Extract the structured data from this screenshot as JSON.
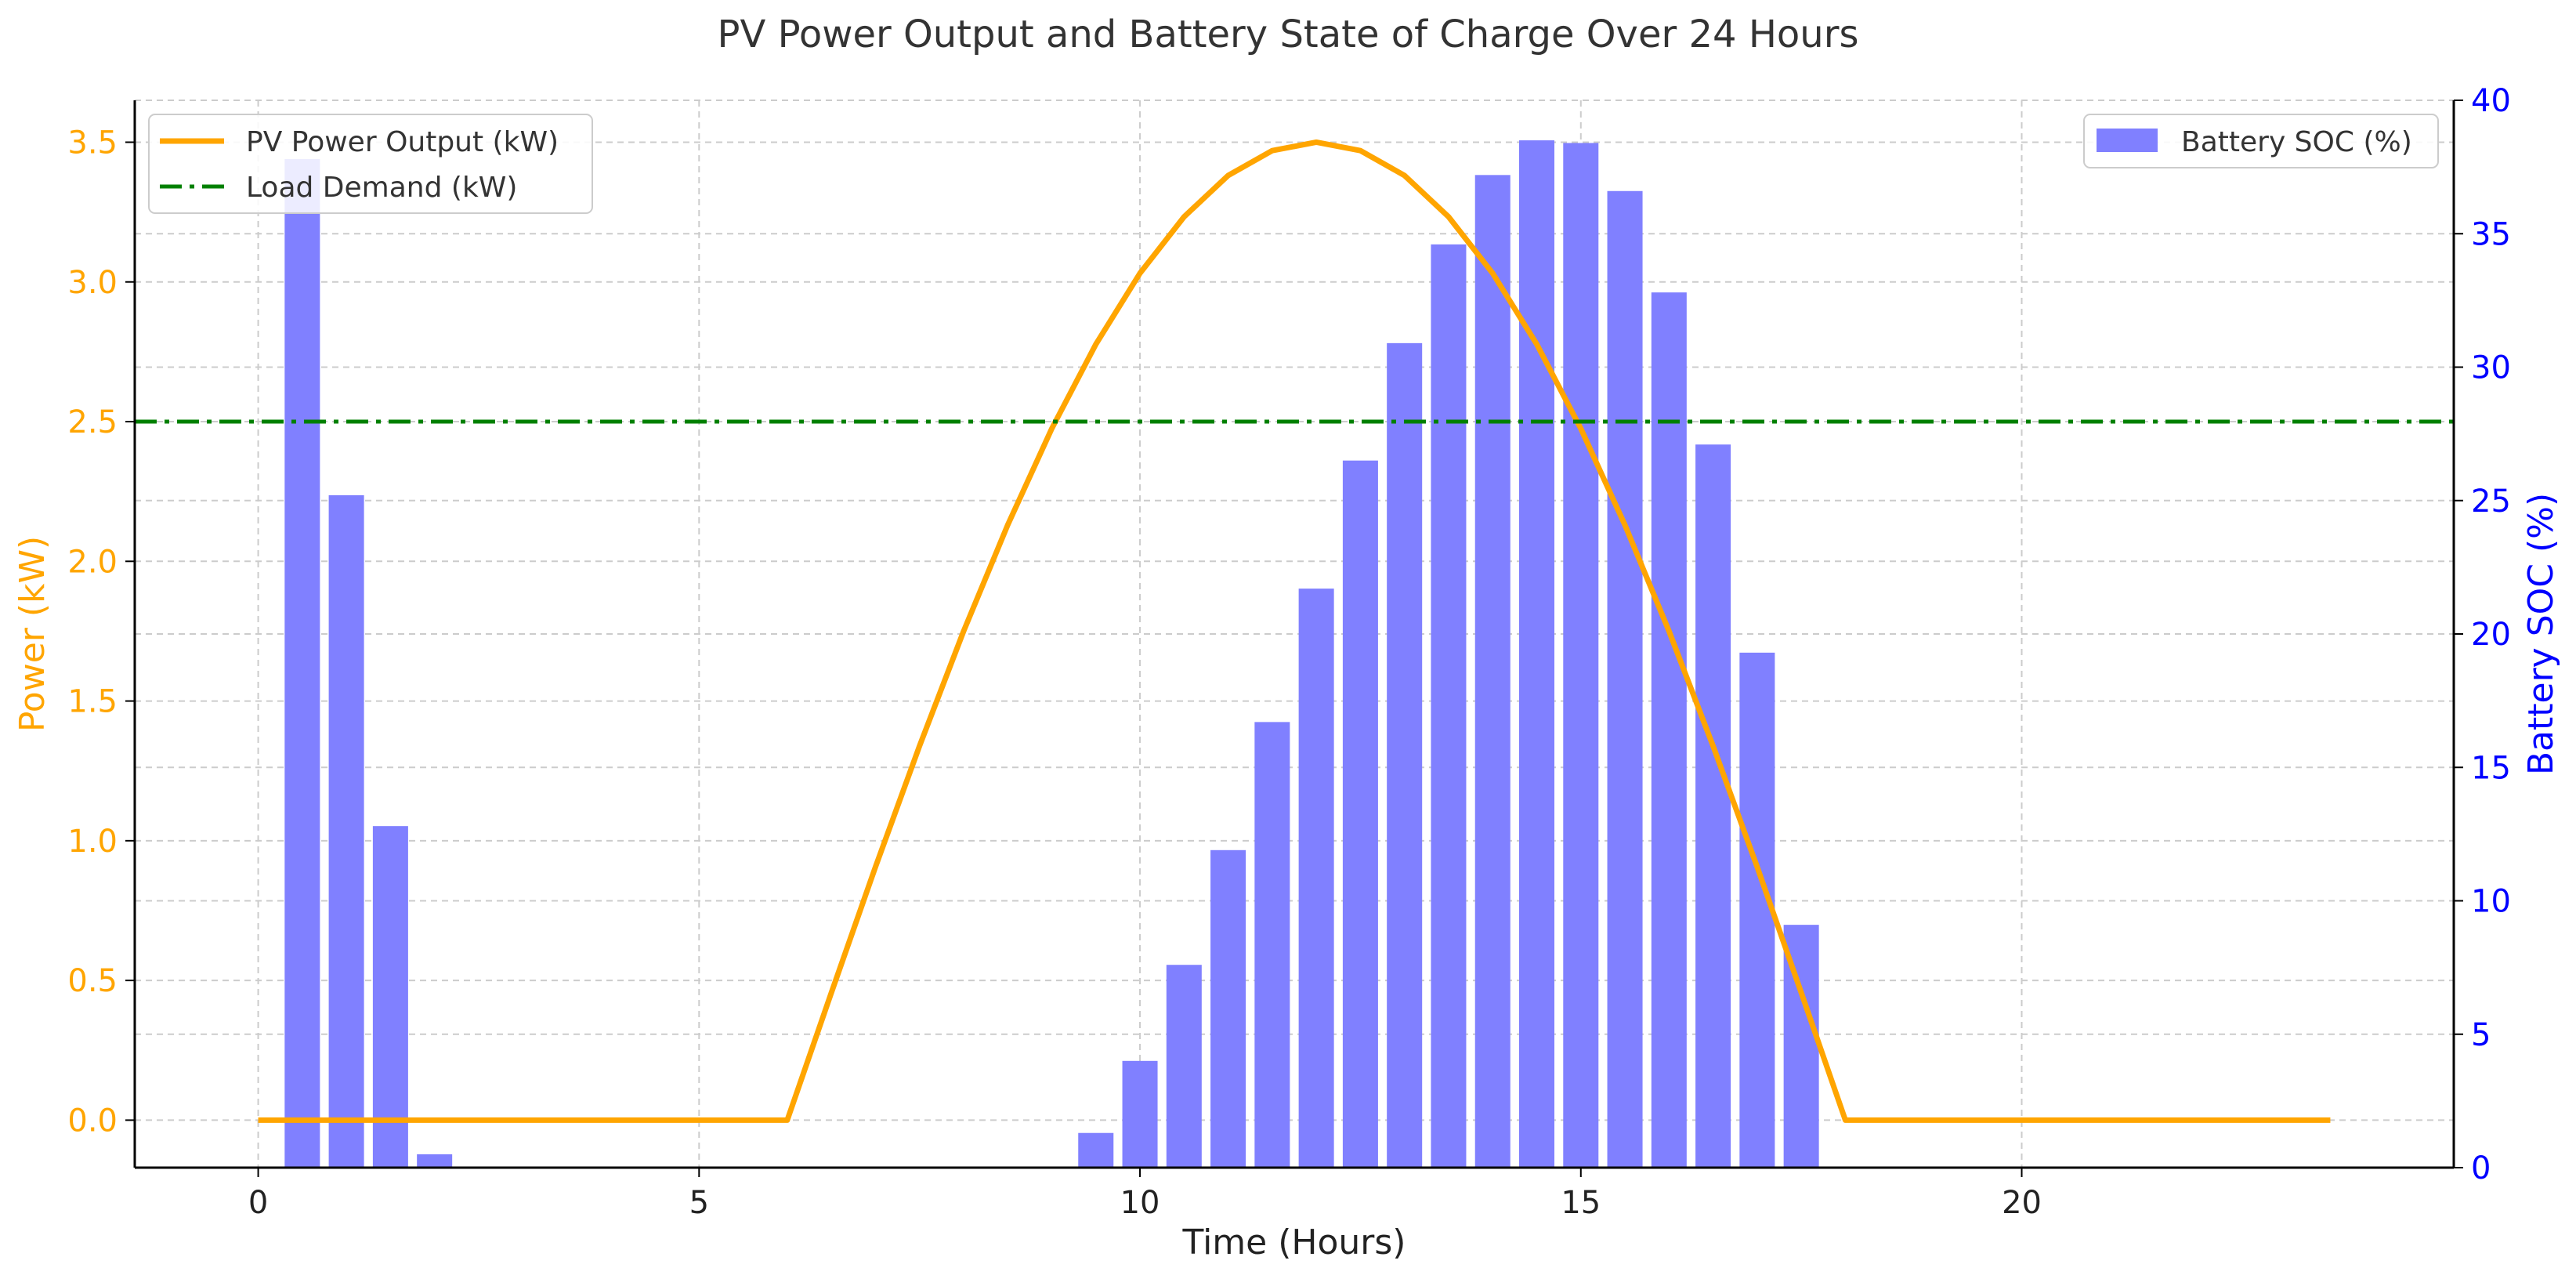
{
  "chart_data": {
    "type": "bar+line",
    "title": "PV Power Output and Battery State of Charge Over 24 Hours",
    "xlabel": "Time (Hours)",
    "ylabel_left": "Power (kW)",
    "ylabel_right": "Battery SOC (%)",
    "xlim": [
      -1.4,
      24.9
    ],
    "ylim_left": [
      -0.17,
      3.65
    ],
    "ylim_right": [
      0,
      40
    ],
    "x_ticks": [
      0,
      5,
      10,
      15,
      20
    ],
    "y_ticks_left": [
      "0.0",
      "0.5",
      "1.0",
      "1.5",
      "2.0",
      "2.5",
      "3.0",
      "3.5"
    ],
    "y_ticks_right": [
      0,
      5,
      10,
      15,
      20,
      25,
      30,
      35,
      40
    ],
    "grid": true,
    "colors": {
      "pv": "#FFA500",
      "load": "#008000",
      "battery": "#8080FF",
      "left_axis": "#FFA500",
      "right_axis": "#0000FF"
    },
    "series": [
      {
        "name": "PV Power Output (kW)",
        "type": "line",
        "axis": "left",
        "x": [
          0,
          0.5,
          1,
          1.5,
          2,
          2.5,
          3,
          3.5,
          4,
          4.5,
          5,
          5.5,
          6,
          6.5,
          7,
          7.5,
          8,
          8.5,
          9,
          9.5,
          10,
          10.5,
          11,
          11.5,
          12,
          12.5,
          13,
          13.5,
          14,
          14.5,
          15,
          15.5,
          16,
          16.5,
          17,
          17.5,
          18,
          18.5,
          19,
          19.5,
          20,
          20.5,
          21,
          21.5,
          22,
          22.5,
          23,
          23.5
        ],
        "values": [
          0,
          0,
          0,
          0,
          0,
          0,
          0,
          0,
          0,
          0,
          0,
          0,
          0,
          0.456,
          0.906,
          1.339,
          1.75,
          2.13,
          2.475,
          2.777,
          3.031,
          3.233,
          3.381,
          3.47,
          3.5,
          3.47,
          3.381,
          3.233,
          3.031,
          2.777,
          2.475,
          2.13,
          1.75,
          1.339,
          0.906,
          0.456,
          0,
          0,
          0,
          0,
          0,
          0,
          0,
          0,
          0,
          0,
          0,
          0
        ]
      },
      {
        "name": "Load Demand (kW)",
        "type": "line",
        "style": "dash-dot",
        "axis": "left",
        "constant": 2.5
      },
      {
        "name": "Battery SOC (%)",
        "type": "bar",
        "axis": "right",
        "bar_width": 0.4,
        "x": [
          0.5,
          1,
          1.5,
          2,
          9.5,
          10,
          10.5,
          11,
          11.5,
          12,
          12.5,
          13,
          13.5,
          14,
          14.5,
          15,
          15.5,
          16,
          16.5,
          17,
          17.5
        ],
        "values": [
          37.8,
          25.2,
          12.8,
          0.5,
          1.3,
          4.0,
          7.6,
          11.9,
          16.7,
          21.7,
          26.5,
          30.9,
          34.6,
          37.2,
          38.5,
          38.4,
          36.6,
          32.8,
          27.1,
          19.3,
          9.1
        ]
      }
    ],
    "legend_left": {
      "placement": "upper-left",
      "entries": [
        "PV Power Output (kW)",
        "Load Demand (kW)"
      ]
    },
    "legend_right": {
      "placement": "upper-right",
      "entries": [
        "Battery SOC (%)"
      ]
    }
  }
}
